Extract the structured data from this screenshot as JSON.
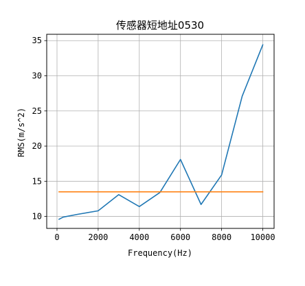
{
  "chart_data": {
    "type": "line",
    "title": "传感器短地址0530",
    "xlabel": "Frequency(Hz)",
    "ylabel": "RMS(m/s^2)",
    "xlim": [
      -500,
      10550
    ],
    "ylim": [
      8.3,
      35.9
    ],
    "xticks": [
      0,
      2000,
      4000,
      6000,
      8000,
      10000
    ],
    "yticks": [
      10,
      15,
      20,
      25,
      30,
      35
    ],
    "grid": true,
    "series": [
      {
        "color": "#1f77b4",
        "x": [
          100,
          300,
          1000,
          2000,
          3000,
          4000,
          5000,
          6000,
          7000,
          8000,
          9000,
          10000
        ],
        "y": [
          9.6,
          9.9,
          10.3,
          10.8,
          13.1,
          11.4,
          13.4,
          18.1,
          11.7,
          15.9,
          27.1,
          34.4
        ]
      },
      {
        "color": "#ff7f0e",
        "x": [
          100,
          10000
        ],
        "y": [
          13.5,
          13.5
        ]
      }
    ]
  }
}
